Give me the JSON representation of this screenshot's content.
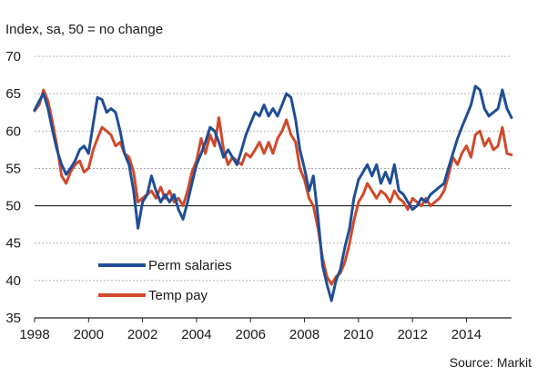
{
  "chart_data": {
    "type": "line",
    "ylabel": "Index, sa, 50 = no change",
    "source": "Source: Markit",
    "ylim": [
      35,
      70
    ],
    "xlim": [
      1998,
      2015.67
    ],
    "yticks": [
      35,
      40,
      45,
      50,
      55,
      60,
      65,
      70
    ],
    "xticks": [
      1998,
      2000,
      2002,
      2004,
      2006,
      2008,
      2010,
      2012,
      2014
    ],
    "reference_line": 50,
    "grid": "horizontal dashed",
    "legend_position": "bottom-left",
    "series": [
      {
        "name": "Perm salaries",
        "color": "#1f4e96",
        "points": [
          [
            1998.0,
            62.8
          ],
          [
            1998.17,
            64.0
          ],
          [
            1998.33,
            65.0
          ],
          [
            1998.5,
            63.0
          ],
          [
            1998.67,
            60.0
          ],
          [
            1998.83,
            57.5
          ],
          [
            1999.0,
            55.5
          ],
          [
            1999.17,
            54.2
          ],
          [
            1999.33,
            55.0
          ],
          [
            1999.5,
            56.0
          ],
          [
            1999.67,
            57.5
          ],
          [
            1999.83,
            58.0
          ],
          [
            2000.0,
            57.0
          ],
          [
            2000.17,
            61.0
          ],
          [
            2000.33,
            64.5
          ],
          [
            2000.5,
            64.2
          ],
          [
            2000.67,
            62.5
          ],
          [
            2000.83,
            63.0
          ],
          [
            2001.0,
            62.5
          ],
          [
            2001.17,
            60.0
          ],
          [
            2001.33,
            57.0
          ],
          [
            2001.5,
            55.5
          ],
          [
            2001.67,
            52.0
          ],
          [
            2001.83,
            47.0
          ],
          [
            2002.0,
            50.5
          ],
          [
            2002.17,
            51.5
          ],
          [
            2002.33,
            54.0
          ],
          [
            2002.5,
            52.0
          ],
          [
            2002.67,
            50.5
          ],
          [
            2002.83,
            51.5
          ],
          [
            2003.0,
            50.5
          ],
          [
            2003.17,
            51.5
          ],
          [
            2003.33,
            49.5
          ],
          [
            2003.5,
            48.2
          ],
          [
            2003.67,
            50.5
          ],
          [
            2003.83,
            53.0
          ],
          [
            2004.0,
            55.5
          ],
          [
            2004.17,
            57.0
          ],
          [
            2004.33,
            58.5
          ],
          [
            2004.5,
            60.5
          ],
          [
            2004.67,
            60.0
          ],
          [
            2004.83,
            58.5
          ],
          [
            2005.0,
            56.5
          ],
          [
            2005.17,
            57.5
          ],
          [
            2005.33,
            56.5
          ],
          [
            2005.5,
            55.5
          ],
          [
            2005.67,
            57.5
          ],
          [
            2005.83,
            59.5
          ],
          [
            2006.0,
            61.0
          ],
          [
            2006.17,
            62.5
          ],
          [
            2006.33,
            62.0
          ],
          [
            2006.5,
            63.5
          ],
          [
            2006.67,
            62.0
          ],
          [
            2006.83,
            63.0
          ],
          [
            2007.0,
            62.0
          ],
          [
            2007.17,
            63.5
          ],
          [
            2007.33,
            65.0
          ],
          [
            2007.5,
            64.5
          ],
          [
            2007.67,
            61.5
          ],
          [
            2007.83,
            57.5
          ],
          [
            2008.0,
            55.0
          ],
          [
            2008.17,
            52.0
          ],
          [
            2008.33,
            54.0
          ],
          [
            2008.5,
            48.5
          ],
          [
            2008.67,
            42.0
          ],
          [
            2008.83,
            39.5
          ],
          [
            2009.0,
            37.3
          ],
          [
            2009.17,
            40.0
          ],
          [
            2009.33,
            41.5
          ],
          [
            2009.5,
            44.5
          ],
          [
            2009.67,
            47.0
          ],
          [
            2009.83,
            51.0
          ],
          [
            2010.0,
            53.5
          ],
          [
            2010.17,
            54.5
          ],
          [
            2010.33,
            55.5
          ],
          [
            2010.5,
            54.0
          ],
          [
            2010.67,
            55.5
          ],
          [
            2010.83,
            53.0
          ],
          [
            2011.0,
            54.5
          ],
          [
            2011.17,
            53.0
          ],
          [
            2011.33,
            55.5
          ],
          [
            2011.5,
            52.0
          ],
          [
            2011.67,
            51.5
          ],
          [
            2011.83,
            50.5
          ],
          [
            2012.0,
            49.5
          ],
          [
            2012.17,
            50.0
          ],
          [
            2012.33,
            51.0
          ],
          [
            2012.5,
            50.5
          ],
          [
            2012.67,
            51.5
          ],
          [
            2012.83,
            52.0
          ],
          [
            2013.0,
            52.5
          ],
          [
            2013.17,
            53.0
          ],
          [
            2013.33,
            55.0
          ],
          [
            2013.5,
            57.0
          ],
          [
            2013.67,
            59.0
          ],
          [
            2013.83,
            60.5
          ],
          [
            2014.0,
            62.0
          ],
          [
            2014.17,
            63.5
          ],
          [
            2014.33,
            66.0
          ],
          [
            2014.5,
            65.5
          ],
          [
            2014.67,
            63.0
          ],
          [
            2014.83,
            62.0
          ],
          [
            2015.0,
            62.5
          ],
          [
            2015.17,
            63.0
          ],
          [
            2015.33,
            65.5
          ],
          [
            2015.5,
            63.0
          ],
          [
            2015.67,
            61.8
          ]
        ]
      },
      {
        "name": "Temp pay",
        "color": "#d04a2a",
        "points": [
          [
            1998.0,
            62.7
          ],
          [
            1998.17,
            63.5
          ],
          [
            1998.33,
            65.5
          ],
          [
            1998.5,
            64.0
          ],
          [
            1998.67,
            61.0
          ],
          [
            1998.83,
            58.0
          ],
          [
            1999.0,
            54.0
          ],
          [
            1999.17,
            53.0
          ],
          [
            1999.33,
            54.5
          ],
          [
            1999.5,
            55.5
          ],
          [
            1999.67,
            56.0
          ],
          [
            1999.83,
            54.5
          ],
          [
            2000.0,
            55.0
          ],
          [
            2000.17,
            57.5
          ],
          [
            2000.33,
            59.0
          ],
          [
            2000.5,
            60.5
          ],
          [
            2000.67,
            60.0
          ],
          [
            2000.83,
            59.5
          ],
          [
            2001.0,
            58.0
          ],
          [
            2001.17,
            58.5
          ],
          [
            2001.33,
            57.0
          ],
          [
            2001.5,
            56.5
          ],
          [
            2001.67,
            54.5
          ],
          [
            2001.83,
            50.5
          ],
          [
            2002.0,
            51.0
          ],
          [
            2002.17,
            51.5
          ],
          [
            2002.33,
            52.0
          ],
          [
            2002.5,
            51.0
          ],
          [
            2002.67,
            52.5
          ],
          [
            2002.83,
            51.0
          ],
          [
            2003.0,
            52.0
          ],
          [
            2003.17,
            50.5
          ],
          [
            2003.33,
            51.0
          ],
          [
            2003.5,
            50.0
          ],
          [
            2003.67,
            52.0
          ],
          [
            2003.83,
            54.5
          ],
          [
            2004.0,
            56.0
          ],
          [
            2004.17,
            59.0
          ],
          [
            2004.33,
            57.0
          ],
          [
            2004.5,
            59.5
          ],
          [
            2004.67,
            58.0
          ],
          [
            2004.83,
            61.8
          ],
          [
            2005.0,
            57.5
          ],
          [
            2005.17,
            55.5
          ],
          [
            2005.33,
            56.5
          ],
          [
            2005.5,
            56.0
          ],
          [
            2005.67,
            55.5
          ],
          [
            2005.83,
            57.0
          ],
          [
            2006.0,
            56.5
          ],
          [
            2006.17,
            57.5
          ],
          [
            2006.33,
            58.5
          ],
          [
            2006.5,
            57.0
          ],
          [
            2006.67,
            58.5
          ],
          [
            2006.83,
            57.0
          ],
          [
            2007.0,
            59.0
          ],
          [
            2007.17,
            60.0
          ],
          [
            2007.33,
            61.5
          ],
          [
            2007.5,
            59.5
          ],
          [
            2007.67,
            58.5
          ],
          [
            2007.83,
            55.0
          ],
          [
            2008.0,
            53.5
          ],
          [
            2008.17,
            51.0
          ],
          [
            2008.33,
            50.0
          ],
          [
            2008.5,
            47.0
          ],
          [
            2008.67,
            43.0
          ],
          [
            2008.83,
            40.5
          ],
          [
            2009.0,
            39.5
          ],
          [
            2009.17,
            40.5
          ],
          [
            2009.33,
            41.0
          ],
          [
            2009.5,
            42.5
          ],
          [
            2009.67,
            45.0
          ],
          [
            2009.83,
            48.0
          ],
          [
            2010.0,
            50.5
          ],
          [
            2010.17,
            51.5
          ],
          [
            2010.33,
            53.0
          ],
          [
            2010.5,
            52.0
          ],
          [
            2010.67,
            51.0
          ],
          [
            2010.83,
            52.0
          ],
          [
            2011.0,
            51.5
          ],
          [
            2011.17,
            50.5
          ],
          [
            2011.33,
            52.0
          ],
          [
            2011.5,
            51.0
          ],
          [
            2011.67,
            50.5
          ],
          [
            2011.83,
            49.5
          ],
          [
            2012.0,
            51.0
          ],
          [
            2012.17,
            50.5
          ],
          [
            2012.33,
            50.0
          ],
          [
            2012.5,
            51.0
          ],
          [
            2012.67,
            50.0
          ],
          [
            2012.83,
            50.5
          ],
          [
            2013.0,
            51.0
          ],
          [
            2013.17,
            52.0
          ],
          [
            2013.33,
            54.0
          ],
          [
            2013.5,
            56.5
          ],
          [
            2013.67,
            55.5
          ],
          [
            2013.83,
            57.0
          ],
          [
            2014.0,
            58.0
          ],
          [
            2014.17,
            56.5
          ],
          [
            2014.33,
            59.5
          ],
          [
            2014.5,
            60.0
          ],
          [
            2014.67,
            58.0
          ],
          [
            2014.83,
            59.0
          ],
          [
            2015.0,
            57.5
          ],
          [
            2015.17,
            58.0
          ],
          [
            2015.33,
            60.5
          ],
          [
            2015.5,
            57.0
          ],
          [
            2015.67,
            56.8
          ]
        ]
      }
    ]
  }
}
